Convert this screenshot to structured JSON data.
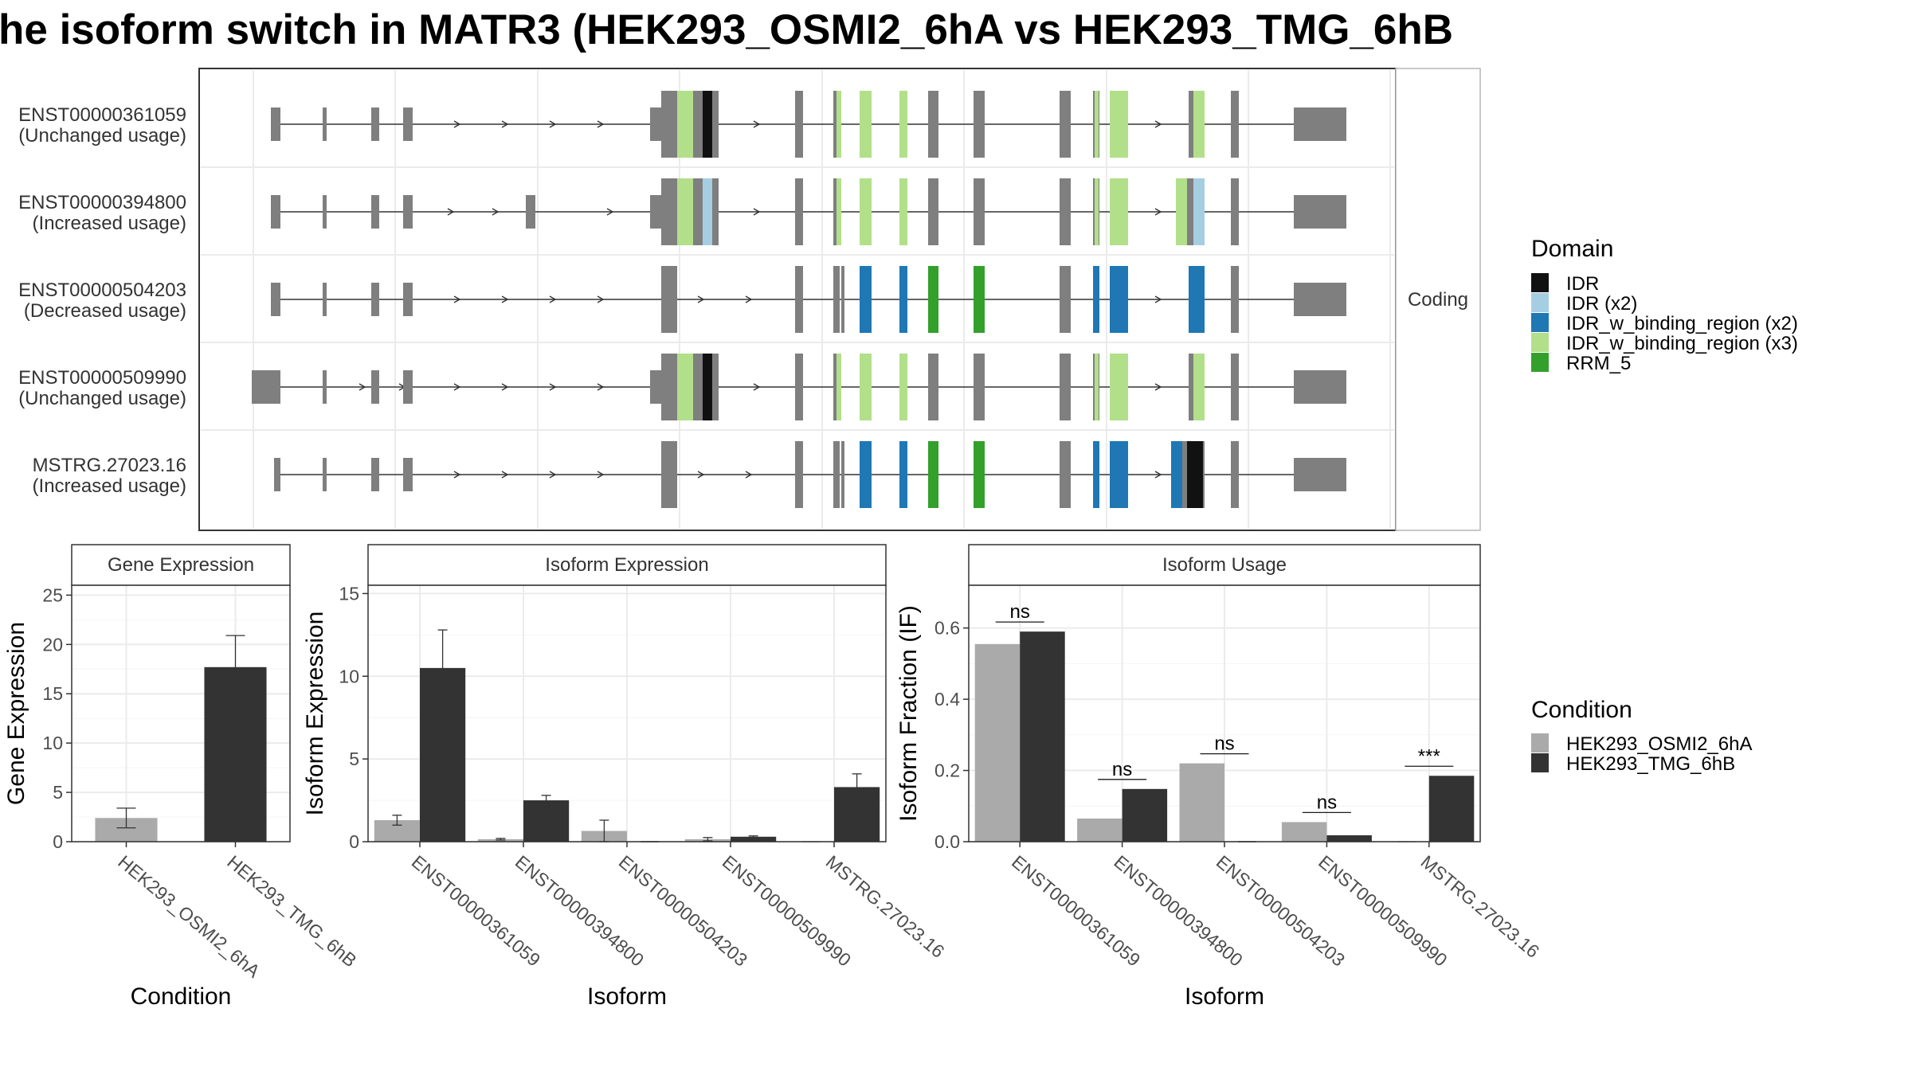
{
  "title": "he isoform switch in MATR3 (HEK293_OSMI2_6hA vs HEK293_TMG_6hB",
  "structure_panel": {
    "strip_label": "Coding",
    "transcripts": [
      {
        "id": "ENST00000361059",
        "usage": "(Unchanged usage)"
      },
      {
        "id": "ENST00000394800",
        "usage": "(Increased usage)"
      },
      {
        "id": "ENST00000504203",
        "usage": "(Decreased usage)"
      },
      {
        "id": "ENST00000509990",
        "usage": "(Unchanged usage)"
      },
      {
        "id": "MSTRG.27023.16",
        "usage": "(Increased usage)"
      }
    ]
  },
  "domain_legend": {
    "title": "Domain",
    "items": [
      {
        "label": "IDR",
        "color": "#111111"
      },
      {
        "label": "IDR (x2)",
        "color": "#a6cee3"
      },
      {
        "label": "IDR_w_binding_region (x2)",
        "color": "#1f78b4"
      },
      {
        "label": "IDR_w_binding_region (x3)",
        "color": "#b2df8a"
      },
      {
        "label": "RRM_5",
        "color": "#33a02c"
      }
    ]
  },
  "condition_legend": {
    "title": "Condition",
    "items": [
      {
        "label": "HEK293_OSMI2_6hA",
        "color": "#aaaaaa"
      },
      {
        "label": "HEK293_TMG_6hB",
        "color": "#333333"
      }
    ]
  },
  "chart_data": [
    {
      "type": "bar",
      "title": "Gene Expression",
      "xlabel": "Condition",
      "ylabel": "Gene Expression",
      "ylim": [
        0,
        26
      ],
      "yticks": [
        0,
        5,
        10,
        15,
        20,
        25
      ],
      "categories": [
        "HEK293_OSMI2_6hA",
        "HEK293_TMG_6hB"
      ],
      "values": [
        2.4,
        17.7
      ],
      "error_low": [
        1.4,
        14.5
      ],
      "error_high": [
        3.4,
        20.9
      ],
      "colors": [
        "#aaaaaa",
        "#333333"
      ]
    },
    {
      "type": "bar",
      "title": "Isoform Expression",
      "xlabel": "Isoform",
      "ylabel": "Isoform Expression",
      "ylim": [
        0,
        15.5
      ],
      "yticks": [
        0,
        5,
        10,
        15
      ],
      "categories": [
        "ENST00000361059",
        "ENST00000394800",
        "ENST00000504203",
        "ENST00000509990",
        "MSTRG.27023.16"
      ],
      "series": [
        {
          "name": "HEK293_OSMI2_6hA",
          "color": "#aaaaaa",
          "values": [
            1.3,
            0.15,
            0.65,
            0.15,
            0.0
          ],
          "error_low": [
            1.0,
            0.1,
            0.0,
            0.05,
            0.0
          ],
          "error_high": [
            1.6,
            0.2,
            1.3,
            0.25,
            0.0
          ]
        },
        {
          "name": "HEK293_TMG_6hB",
          "color": "#333333",
          "values": [
            10.5,
            2.5,
            0.0,
            0.3,
            3.3
          ],
          "error_low": [
            8.2,
            2.2,
            0.0,
            0.25,
            2.5
          ],
          "error_high": [
            12.8,
            2.8,
            0.0,
            0.35,
            4.1
          ]
        }
      ]
    },
    {
      "type": "bar",
      "title": "Isoform Usage",
      "xlabel": "Isoform",
      "ylabel": "Isoform Fraction (IF)",
      "ylim": [
        0,
        0.72
      ],
      "yticks": [
        "0.0",
        "0.2",
        "0.4",
        "0.6"
      ],
      "categories": [
        "ENST00000361059",
        "ENST00000394800",
        "ENST00000504203",
        "ENST00000509990",
        "MSTRG.27023.16"
      ],
      "series": [
        {
          "name": "HEK293_OSMI2_6hA",
          "color": "#aaaaaa",
          "values": [
            0.555,
            0.065,
            0.22,
            0.055,
            0.0
          ]
        },
        {
          "name": "HEK293_TMG_6hB",
          "color": "#333333",
          "values": [
            0.59,
            0.148,
            0.0,
            0.018,
            0.185
          ]
        }
      ],
      "significance": [
        "ns",
        "ns",
        "ns",
        "ns",
        "***"
      ]
    }
  ]
}
